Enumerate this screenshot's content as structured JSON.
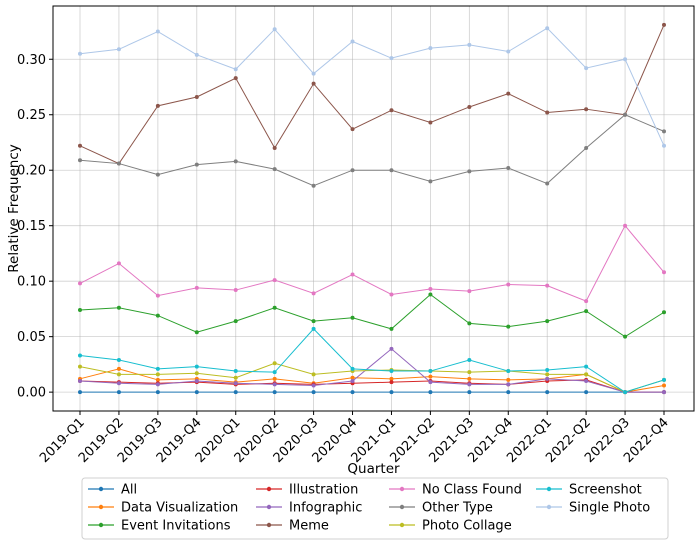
{
  "chart_data": {
    "type": "line",
    "title": "",
    "xlabel": "Quarter",
    "ylabel": "Relative Frequency",
    "ylim": [
      -0.017,
      0.348
    ],
    "yticks": [
      0.0,
      0.05,
      0.1,
      0.15,
      0.2,
      0.25,
      0.3
    ],
    "ytick_labels": [
      "0.00",
      "0.05",
      "0.10",
      "0.15",
      "0.20",
      "0.25",
      "0.30"
    ],
    "grid": true,
    "legend_position": "bottom",
    "categories": [
      "2019-Q1",
      "2019-Q2",
      "2019-Q3",
      "2019-Q4",
      "2020-Q1",
      "2020-Q2",
      "2020-Q3",
      "2020-Q4",
      "2021-Q1",
      "2021-Q2",
      "2021-Q3",
      "2021-Q4",
      "2022-Q1",
      "2022-Q2",
      "2022-Q3",
      "2022-Q4"
    ],
    "series": [
      {
        "name": "All",
        "color": "#1f77b4",
        "values": [
          0.0,
          0.0,
          0.0,
          0.0,
          0.0,
          0.0,
          0.0,
          0.0,
          0.0,
          0.0,
          0.0,
          0.0,
          0.0,
          0.0,
          0.0,
          0.0
        ]
      },
      {
        "name": "Data Visualization",
        "color": "#ff7f0e",
        "values": [
          0.012,
          0.021,
          0.011,
          0.012,
          0.009,
          0.012,
          0.008,
          0.013,
          0.012,
          0.014,
          0.012,
          0.011,
          0.012,
          0.016,
          0.0,
          0.006
        ]
      },
      {
        "name": "Event Invitations",
        "color": "#2ca02c",
        "values": [
          0.074,
          0.076,
          0.069,
          0.054,
          0.064,
          0.076,
          0.064,
          0.067,
          0.057,
          0.088,
          0.062,
          0.059,
          0.064,
          0.073,
          0.05,
          0.072
        ]
      },
      {
        "name": "Illustration",
        "color": "#d62728",
        "values": [
          0.01,
          0.009,
          0.008,
          0.009,
          0.007,
          0.008,
          0.007,
          0.008,
          0.009,
          0.01,
          0.008,
          0.007,
          0.01,
          0.011,
          0.0,
          0.0
        ]
      },
      {
        "name": "Infographic",
        "color": "#9467bd",
        "values": [
          0.01,
          0.008,
          0.007,
          0.01,
          0.008,
          0.007,
          0.006,
          0.01,
          0.039,
          0.009,
          0.007,
          0.007,
          0.012,
          0.01,
          0.0,
          0.0
        ]
      },
      {
        "name": "Meme",
        "color": "#8c564b",
        "values": [
          0.222,
          0.206,
          0.258,
          0.266,
          0.283,
          0.22,
          0.278,
          0.237,
          0.254,
          0.243,
          0.257,
          0.269,
          0.252,
          0.255,
          0.25,
          0.331
        ]
      },
      {
        "name": "No Class Found",
        "color": "#e377c2",
        "values": [
          0.098,
          0.116,
          0.087,
          0.094,
          0.092,
          0.101,
          0.089,
          0.106,
          0.088,
          0.093,
          0.091,
          0.097,
          0.096,
          0.082,
          0.15,
          0.108
        ]
      },
      {
        "name": "Other Type",
        "color": "#7f7f7f",
        "values": [
          0.209,
          0.206,
          0.196,
          0.205,
          0.208,
          0.201,
          0.186,
          0.2,
          0.2,
          0.19,
          0.199,
          0.202,
          0.188,
          0.22,
          0.25,
          0.235
        ]
      },
      {
        "name": "Photo Collage",
        "color": "#bcbd22",
        "values": [
          0.023,
          0.016,
          0.016,
          0.017,
          0.013,
          0.026,
          0.016,
          0.019,
          0.02,
          0.019,
          0.018,
          0.019,
          0.016,
          0.016,
          0.0,
          0.011
        ]
      },
      {
        "name": "Screenshot",
        "color": "#17becf",
        "values": [
          0.033,
          0.029,
          0.021,
          0.023,
          0.019,
          0.018,
          0.057,
          0.021,
          0.019,
          0.019,
          0.029,
          0.019,
          0.02,
          0.023,
          0.0,
          0.011
        ]
      },
      {
        "name": "Single Photo",
        "color": "#aec7e8",
        "values": [
          0.305,
          0.309,
          0.325,
          0.304,
          0.291,
          0.327,
          0.287,
          0.316,
          0.301,
          0.31,
          0.313,
          0.307,
          0.328,
          0.292,
          0.3,
          0.222
        ]
      }
    ]
  }
}
